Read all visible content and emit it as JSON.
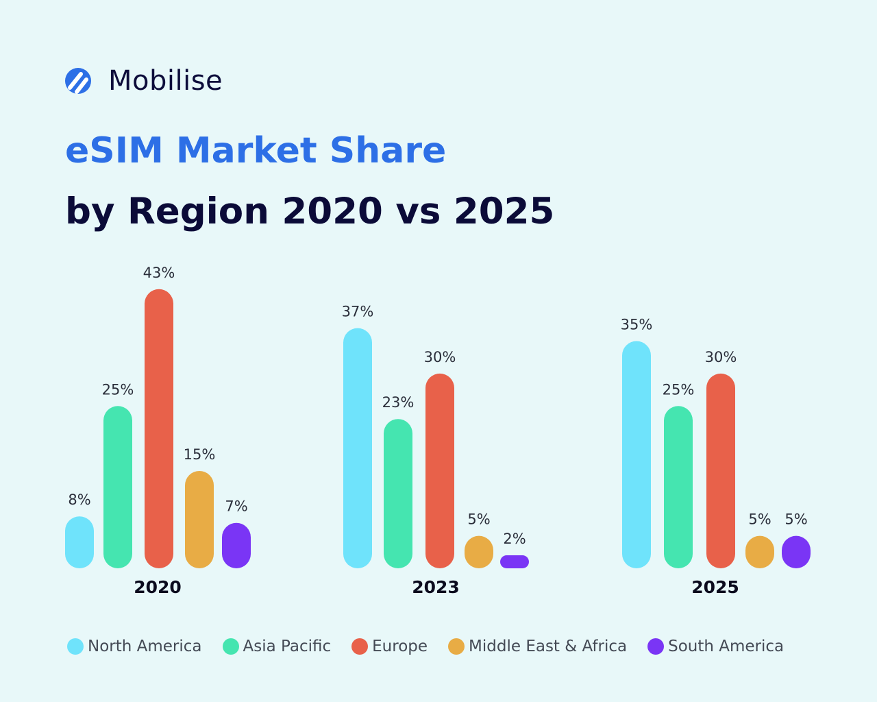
{
  "brand": {
    "name": "Mobilise",
    "color": "#2d6fe6"
  },
  "title_line1": "eSIM Market Share",
  "title_line2": "by Region 2020 vs 2025",
  "chart_data": {
    "type": "bar",
    "title": "eSIM Market Share by Region 2020 vs 2025",
    "categories": [
      "2020",
      "2023",
      "2025"
    ],
    "unit": "%",
    "series": [
      {
        "name": "North America",
        "color": "#6fe3fb",
        "values": [
          8,
          37,
          35
        ]
      },
      {
        "name": "Asia Pacific",
        "color": "#45e5b0",
        "values": [
          25,
          23,
          25
        ]
      },
      {
        "name": "Europe",
        "color": "#e8614a",
        "values": [
          43,
          30,
          30
        ]
      },
      {
        "name": "Middle East & Africa",
        "color": "#e8ac45",
        "values": [
          15,
          5,
          5
        ]
      },
      {
        "name": "South America",
        "color": "#7a35f5",
        "values": [
          7,
          2,
          5
        ]
      }
    ],
    "data_labels": true,
    "legend": "bottom",
    "grid": false,
    "ylim": [
      0,
      43
    ]
  }
}
